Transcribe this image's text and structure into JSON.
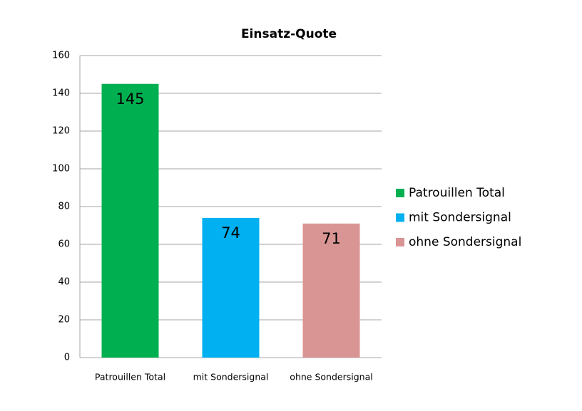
{
  "chart_data": {
    "type": "bar",
    "title": "Einsatz-Quote",
    "categories": [
      "Patrouillen Total",
      "mit Sondersignal",
      "ohne Sondersignal"
    ],
    "values": [
      145,
      74,
      71
    ],
    "colors": [
      "#00b050",
      "#00b0f0",
      "#d99594"
    ],
    "ylim": [
      0,
      160
    ],
    "yticks": [
      0,
      20,
      40,
      60,
      80,
      100,
      120,
      140,
      160
    ],
    "grid": true,
    "legend": "right"
  }
}
